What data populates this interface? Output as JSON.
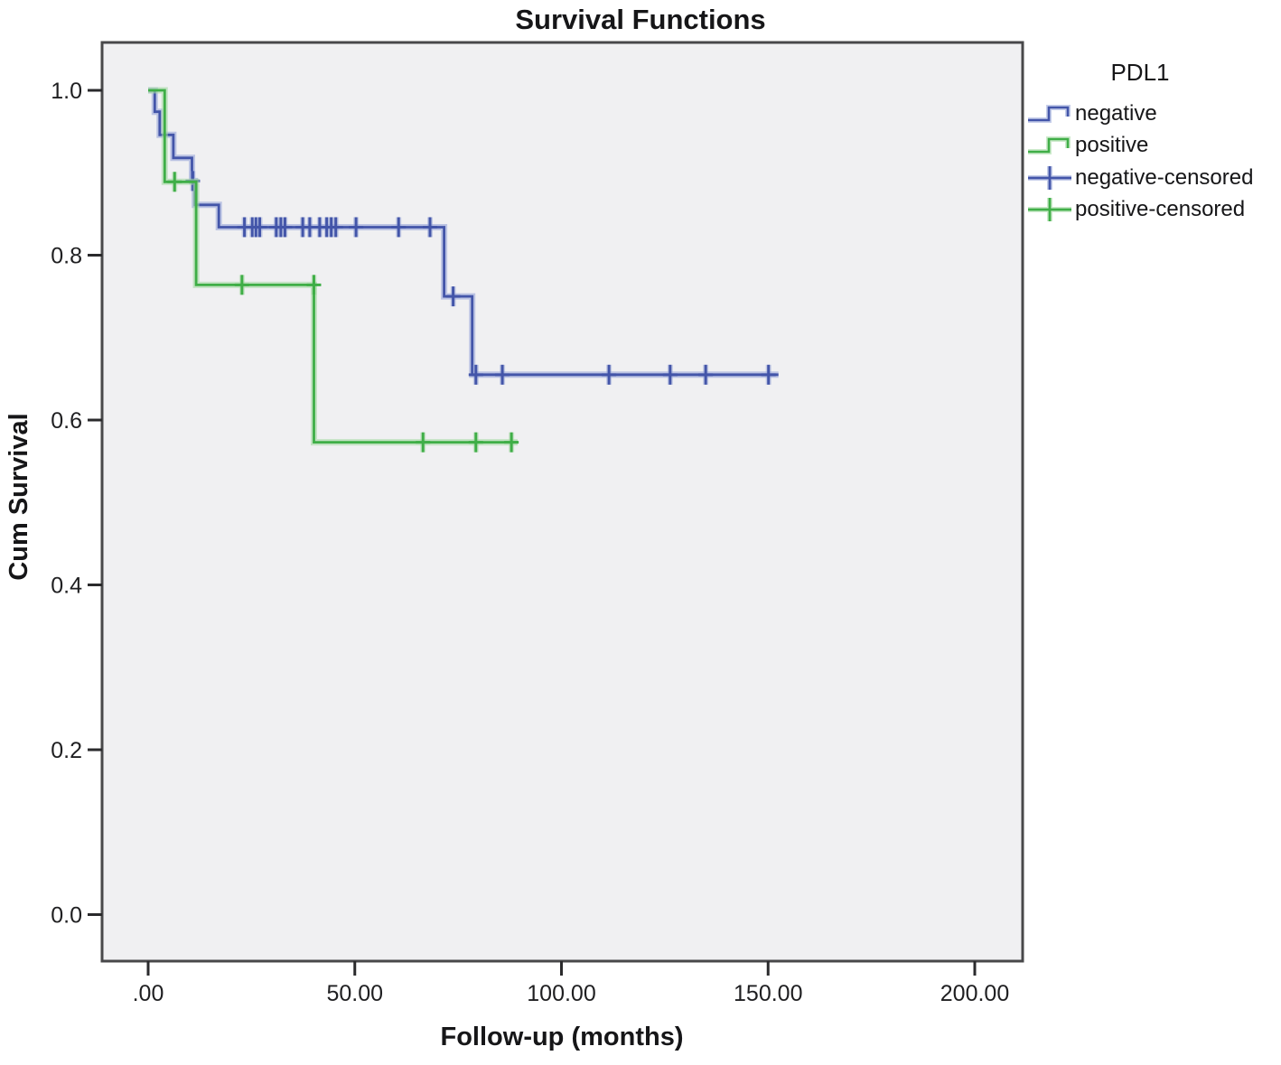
{
  "title": "Survival Functions",
  "axes": {
    "x": {
      "label": "Follow-up (months)",
      "ticks": [
        {
          "value": 0,
          "label": ".00"
        },
        {
          "value": 50,
          "label": "50.00"
        },
        {
          "value": 100,
          "label": "100.00"
        },
        {
          "value": 150,
          "label": "150.00"
        },
        {
          "value": 200,
          "label": "200.00"
        }
      ]
    },
    "y": {
      "label": "Cum Survival",
      "ticks": [
        {
          "value": 1.0,
          "label": "1.0"
        },
        {
          "value": 0.8,
          "label": "0.8"
        },
        {
          "value": 0.6,
          "label": "0.6"
        },
        {
          "value": 0.4,
          "label": "0.4"
        },
        {
          "value": 0.2,
          "label": "0.2"
        },
        {
          "value": 0.0,
          "label": "0.0"
        }
      ]
    }
  },
  "legend": {
    "title": "PDL1",
    "items": [
      {
        "label": "negative",
        "series": "negative",
        "symbol": "step-line"
      },
      {
        "label": "positive",
        "series": "positive",
        "symbol": "step-line"
      },
      {
        "label": "negative-censored",
        "series": "negative",
        "symbol": "censored"
      },
      {
        "label": "positive-censored",
        "series": "positive",
        "symbol": "censored"
      }
    ]
  },
  "colors": {
    "negative": "#4355a9",
    "negative_halo": "#97a5d8",
    "positive": "#3fae47",
    "positive_halo": "#a4d8a2",
    "panel_bg": "#f0f0f2",
    "panel_border": "#48484a",
    "tick": "#2a2a2c",
    "text": "#1f1f21"
  },
  "chart_data": {
    "type": "line",
    "subtype": "kaplan-meier-step",
    "title": "Survival Functions",
    "xlabel": "Follow-up (months)",
    "ylabel": "Cum Survival",
    "xlim": [
      0,
      200
    ],
    "ylim": [
      0.0,
      1.0
    ],
    "grid": false,
    "legend_position": "upper-right-outside",
    "series": [
      {
        "name": "negative",
        "steps": [
          [
            0,
            1.0
          ],
          [
            1.6,
            1.0
          ],
          [
            1.6,
            0.974
          ],
          [
            2.8,
            0.974
          ],
          [
            2.8,
            0.946
          ],
          [
            6.1,
            0.946
          ],
          [
            6.1,
            0.918
          ],
          [
            10.6,
            0.918
          ],
          [
            10.6,
            0.89
          ],
          [
            11.3,
            0.89
          ],
          [
            11.3,
            0.861
          ],
          [
            17.1,
            0.861
          ],
          [
            17.1,
            0.834
          ],
          [
            71.6,
            0.834
          ],
          [
            71.6,
            0.75
          ],
          [
            78.4,
            0.75
          ],
          [
            78.4,
            0.655
          ],
          [
            152.5,
            0.655
          ]
        ],
        "censored": [
          [
            10.8,
            0.89
          ],
          [
            23.3,
            0.834
          ],
          [
            25.2,
            0.834
          ],
          [
            26.1,
            0.834
          ],
          [
            27.0,
            0.834
          ],
          [
            31.0,
            0.834
          ],
          [
            32.1,
            0.834
          ],
          [
            33.1,
            0.834
          ],
          [
            37.4,
            0.834
          ],
          [
            39.1,
            0.834
          ],
          [
            41.5,
            0.834
          ],
          [
            43.2,
            0.834
          ],
          [
            44.3,
            0.834
          ],
          [
            45.4,
            0.834
          ],
          [
            50.3,
            0.834
          ],
          [
            60.6,
            0.834
          ],
          [
            68.2,
            0.834
          ],
          [
            73.8,
            0.75
          ],
          [
            79.3,
            0.655
          ],
          [
            85.7,
            0.655
          ],
          [
            111.5,
            0.655
          ],
          [
            126.3,
            0.655
          ],
          [
            134.9,
            0.655
          ],
          [
            150.1,
            0.655
          ]
        ]
      },
      {
        "name": "positive",
        "steps": [
          [
            0,
            1.0
          ],
          [
            4.0,
            1.0
          ],
          [
            4.0,
            0.889
          ],
          [
            11.6,
            0.889
          ],
          [
            11.6,
            0.764
          ],
          [
            40.1,
            0.764
          ],
          [
            40.1,
            0.573
          ],
          [
            89.4,
            0.573
          ]
        ],
        "censored": [
          [
            6.4,
            0.889
          ],
          [
            22.7,
            0.764
          ],
          [
            40.1,
            0.764
          ],
          [
            66.5,
            0.573
          ],
          [
            79.3,
            0.573
          ],
          [
            87.9,
            0.573
          ]
        ]
      }
    ]
  }
}
